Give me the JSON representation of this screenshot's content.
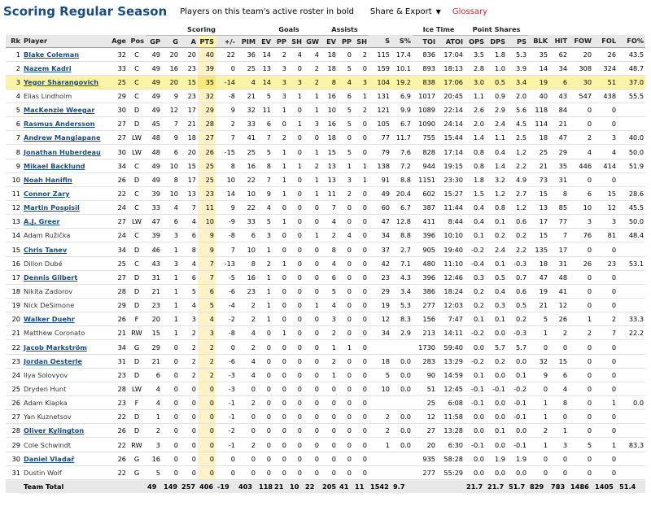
{
  "header": {
    "title": "Scoring Regular Season",
    "note": "Players on this team's active roster in bold",
    "share_label": "Share & Export",
    "glossary_label": "Glossary"
  },
  "table": {
    "over_headers": {
      "scoring": "Scoring",
      "goals": "Goals",
      "assists": "Assists",
      "ice_time": "Ice Time",
      "point_shares": "Point Shares"
    },
    "columns": [
      "Rk",
      "Player",
      "Age",
      "Pos",
      "GP",
      "G",
      "A",
      "PTS",
      "+/-",
      "PIM",
      "EV",
      "PP",
      "SH",
      "GW",
      "EV",
      "PP",
      "SH",
      "S",
      "S%",
      "TOI",
      "ATOI",
      "OPS",
      "DPS",
      "PS",
      "BLK",
      "HIT",
      "FOW",
      "FOL",
      "FO%"
    ],
    "rows": [
      {
        "bold": true,
        "hl": false,
        "cells": [
          "1",
          "Blake Coleman",
          "32",
          "C",
          "49",
          "20",
          "20",
          "40",
          "22",
          "36",
          "14",
          "2",
          "4",
          "4",
          "18",
          "0",
          "2",
          "115",
          "17.4",
          "836",
          "17:04",
          "3.5",
          "1.8",
          "5.3",
          "35",
          "62",
          "20",
          "26",
          "43.5"
        ]
      },
      {
        "bold": true,
        "hl": false,
        "cells": [
          "2",
          "Nazem Kadri",
          "33",
          "C",
          "49",
          "16",
          "23",
          "39",
          "0",
          "25",
          "13",
          "3",
          "0",
          "2",
          "18",
          "5",
          "0",
          "159",
          "10.1",
          "893",
          "18:13",
          "2.8",
          "1.0",
          "3.9",
          "14",
          "34",
          "308",
          "324",
          "48.7"
        ]
      },
      {
        "bold": true,
        "hl": true,
        "cells": [
          "3",
          "Yegor Sharangovich",
          "25",
          "C",
          "49",
          "20",
          "15",
          "35",
          "-14",
          "4",
          "14",
          "3",
          "3",
          "2",
          "8",
          "4",
          "3",
          "104",
          "19.2",
          "838",
          "17:06",
          "3.0",
          "0.5",
          "3.4",
          "19",
          "6",
          "30",
          "51",
          "37.0"
        ]
      },
      {
        "bold": false,
        "hl": false,
        "cells": [
          "4",
          "Elias Lindholm",
          "29",
          "C",
          "49",
          "9",
          "23",
          "32",
          "-8",
          "21",
          "5",
          "3",
          "1",
          "1",
          "16",
          "6",
          "1",
          "131",
          "6.9",
          "1017",
          "20:45",
          "1.1",
          "0.9",
          "2.0",
          "40",
          "43",
          "547",
          "438",
          "55.5"
        ]
      },
      {
        "bold": true,
        "hl": false,
        "cells": [
          "5",
          "MacKenzie Weegar",
          "30",
          "D",
          "49",
          "12",
          "17",
          "29",
          "9",
          "32",
          "11",
          "1",
          "0",
          "1",
          "10",
          "5",
          "2",
          "121",
          "9.9",
          "1089",
          "22:14",
          "2.6",
          "2.9",
          "5.6",
          "118",
          "84",
          "0",
          "0",
          ""
        ]
      },
      {
        "bold": true,
        "hl": false,
        "cells": [
          "6",
          "Rasmus Andersson",
          "27",
          "D",
          "45",
          "7",
          "21",
          "28",
          "2",
          "33",
          "6",
          "0",
          "1",
          "3",
          "16",
          "5",
          "0",
          "105",
          "6.7",
          "1090",
          "24:14",
          "2.0",
          "2.4",
          "4.5",
          "114",
          "21",
          "0",
          "0",
          ""
        ]
      },
      {
        "bold": true,
        "hl": false,
        "cells": [
          "7",
          "Andrew Mangiapane",
          "27",
          "LW",
          "48",
          "9",
          "18",
          "27",
          "7",
          "41",
          "7",
          "2",
          "0",
          "0",
          "18",
          "0",
          "0",
          "77",
          "11.7",
          "755",
          "15:44",
          "1.4",
          "1.1",
          "2.5",
          "18",
          "47",
          "2",
          "3",
          "40.0"
        ]
      },
      {
        "bold": true,
        "hl": false,
        "cells": [
          "8",
          "Jonathan Huberdeau",
          "30",
          "LW",
          "48",
          "6",
          "20",
          "26",
          "-15",
          "25",
          "5",
          "1",
          "0",
          "1",
          "15",
          "5",
          "0",
          "79",
          "7.6",
          "828",
          "17:14",
          "0.8",
          "0.4",
          "1.2",
          "25",
          "29",
          "4",
          "4",
          "50.0"
        ]
      },
      {
        "bold": true,
        "hl": false,
        "cells": [
          "9",
          "Mikael Backlund",
          "34",
          "C",
          "49",
          "10",
          "15",
          "25",
          "8",
          "16",
          "8",
          "1",
          "1",
          "2",
          "13",
          "1",
          "1",
          "138",
          "7.2",
          "944",
          "19:15",
          "0.8",
          "1.4",
          "2.2",
          "21",
          "35",
          "446",
          "414",
          "51.9"
        ]
      },
      {
        "bold": true,
        "hl": false,
        "cells": [
          "10",
          "Noah Hanifin",
          "26",
          "D",
          "49",
          "8",
          "17",
          "25",
          "10",
          "22",
          "7",
          "1",
          "0",
          "1",
          "13",
          "3",
          "1",
          "91",
          "8.8",
          "1151",
          "23:30",
          "1.8",
          "3.2",
          "4.9",
          "73",
          "31",
          "0",
          "0",
          ""
        ]
      },
      {
        "bold": true,
        "hl": false,
        "cells": [
          "11",
          "Connor Zary",
          "22",
          "C",
          "39",
          "10",
          "13",
          "23",
          "14",
          "10",
          "9",
          "1",
          "0",
          "1",
          "11",
          "2",
          "0",
          "49",
          "20.4",
          "602",
          "15:27",
          "1.5",
          "1.2",
          "2.7",
          "15",
          "8",
          "6",
          "15",
          "28.6"
        ]
      },
      {
        "bold": true,
        "hl": false,
        "cells": [
          "12",
          "Martin Pospisil",
          "24",
          "C",
          "33",
          "4",
          "7",
          "11",
          "9",
          "22",
          "4",
          "0",
          "0",
          "0",
          "7",
          "0",
          "0",
          "60",
          "6.7",
          "387",
          "11:44",
          "0.4",
          "0.8",
          "1.2",
          "13",
          "85",
          "10",
          "12",
          "45.5"
        ]
      },
      {
        "bold": true,
        "hl": false,
        "cells": [
          "13",
          "A.J. Greer",
          "27",
          "LW",
          "47",
          "6",
          "4",
          "10",
          "-9",
          "33",
          "5",
          "1",
          "0",
          "0",
          "4",
          "0",
          "0",
          "47",
          "12.8",
          "411",
          "8:44",
          "0.4",
          "0.1",
          "0.6",
          "17",
          "77",
          "3",
          "3",
          "50.0"
        ]
      },
      {
        "bold": false,
        "hl": false,
        "cells": [
          "14",
          "Adam Ružička",
          "24",
          "C",
          "39",
          "3",
          "6",
          "9",
          "-8",
          "6",
          "3",
          "0",
          "0",
          "1",
          "2",
          "4",
          "0",
          "34",
          "8.8",
          "396",
          "10:10",
          "0.1",
          "0.2",
          "0.2",
          "15",
          "7",
          "76",
          "81",
          "48.4"
        ]
      },
      {
        "bold": true,
        "hl": false,
        "cells": [
          "15",
          "Chris Tanev",
          "34",
          "D",
          "46",
          "1",
          "8",
          "9",
          "7",
          "10",
          "1",
          "0",
          "0",
          "0",
          "8",
          "0",
          "0",
          "37",
          "2.7",
          "905",
          "19:40",
          "-0.2",
          "2.4",
          "2.2",
          "135",
          "17",
          "0",
          "0",
          ""
        ]
      },
      {
        "bold": false,
        "hl": false,
        "cells": [
          "16",
          "Dillon Dubé",
          "25",
          "C",
          "43",
          "3",
          "4",
          "7",
          "-13",
          "8",
          "2",
          "1",
          "0",
          "0",
          "4",
          "0",
          "0",
          "42",
          "7.1",
          "480",
          "11:10",
          "-0.4",
          "0.1",
          "-0.3",
          "18",
          "31",
          "26",
          "23",
          "53.1"
        ]
      },
      {
        "bold": true,
        "hl": false,
        "cells": [
          "17",
          "Dennis Gilbert",
          "27",
          "D",
          "31",
          "1",
          "6",
          "7",
          "-5",
          "16",
          "1",
          "0",
          "0",
          "0",
          "6",
          "0",
          "0",
          "23",
          "4.3",
          "396",
          "12:46",
          "0.3",
          "0.5",
          "0.7",
          "47",
          "48",
          "0",
          "0",
          ""
        ]
      },
      {
        "bold": false,
        "hl": false,
        "cells": [
          "18",
          "Nikita Zadorov",
          "28",
          "D",
          "21",
          "1",
          "5",
          "6",
          "-6",
          "23",
          "1",
          "0",
          "0",
          "0",
          "5",
          "0",
          "0",
          "29",
          "3.4",
          "386",
          "18:24",
          "0.2",
          "0.4",
          "0.6",
          "19",
          "41",
          "0",
          "0",
          ""
        ]
      },
      {
        "bold": false,
        "hl": false,
        "cells": [
          "19",
          "Nick DeSimone",
          "29",
          "D",
          "23",
          "1",
          "4",
          "5",
          "-4",
          "2",
          "1",
          "0",
          "0",
          "1",
          "4",
          "0",
          "0",
          "19",
          "5.3",
          "277",
          "12:03",
          "0.2",
          "0.3",
          "0.5",
          "21",
          "12",
          "0",
          "0",
          ""
        ]
      },
      {
        "bold": true,
        "hl": false,
        "cells": [
          "20",
          "Walker Duehr",
          "26",
          "F",
          "20",
          "1",
          "3",
          "4",
          "-2",
          "2",
          "1",
          "0",
          "0",
          "0",
          "3",
          "0",
          "0",
          "12",
          "8.3",
          "156",
          "7:47",
          "0.1",
          "0.1",
          "0.2",
          "5",
          "26",
          "1",
          "2",
          "33.3"
        ]
      },
      {
        "bold": false,
        "hl": false,
        "cells": [
          "21",
          "Matthew Coronato",
          "21",
          "RW",
          "15",
          "1",
          "2",
          "3",
          "-8",
          "4",
          "0",
          "1",
          "0",
          "0",
          "2",
          "0",
          "0",
          "34",
          "2.9",
          "213",
          "14:11",
          "-0.2",
          "0.0",
          "-0.3",
          "1",
          "2",
          "2",
          "7",
          "22.2"
        ]
      },
      {
        "bold": true,
        "hl": false,
        "cells": [
          "22",
          "Jacob Markström",
          "34",
          "G",
          "29",
          "0",
          "2",
          "2",
          "0",
          "2",
          "0",
          "0",
          "0",
          "0",
          "1",
          "1",
          "0",
          "",
          "",
          "1730",
          "59:40",
          "0.0",
          "5.7",
          "5.7",
          "0",
          "0",
          "0",
          "0",
          ""
        ]
      },
      {
        "bold": true,
        "hl": false,
        "cells": [
          "23",
          "Jordan Oesterle",
          "31",
          "D",
          "21",
          "0",
          "2",
          "2",
          "-6",
          "4",
          "0",
          "0",
          "0",
          "0",
          "2",
          "0",
          "0",
          "18",
          "0.0",
          "283",
          "13:29",
          "-0.2",
          "0.2",
          "0.0",
          "32",
          "15",
          "0",
          "0",
          ""
        ]
      },
      {
        "bold": false,
        "hl": false,
        "cells": [
          "24",
          "Ilya Solovyov",
          "23",
          "D",
          "6",
          "0",
          "2",
          "2",
          "-3",
          "4",
          "0",
          "0",
          "0",
          "0",
          "1",
          "0",
          "0",
          "5",
          "0.0",
          "90",
          "14:59",
          "0.1",
          "0.0",
          "0.1",
          "9",
          "6",
          "0",
          "0",
          ""
        ]
      },
      {
        "bold": false,
        "hl": false,
        "cells": [
          "25",
          "Dryden Hunt",
          "28",
          "LW",
          "4",
          "0",
          "0",
          "0",
          "-3",
          "0",
          "0",
          "0",
          "0",
          "0",
          "0",
          "0",
          "0",
          "10",
          "0.0",
          "51",
          "12:45",
          "-0.1",
          "-0.1",
          "-0.2",
          "0",
          "4",
          "0",
          "0",
          ""
        ]
      },
      {
        "bold": false,
        "hl": false,
        "cells": [
          "26",
          "Adam Klapka",
          "23",
          "F",
          "4",
          "0",
          "0",
          "0",
          "-1",
          "2",
          "0",
          "0",
          "0",
          "0",
          "0",
          "0",
          "0",
          "",
          "",
          "25",
          "6:08",
          "-0.1",
          "0.0",
          "-0.1",
          "1",
          "8",
          "0",
          "1",
          "0.0"
        ]
      },
      {
        "bold": false,
        "hl": false,
        "cells": [
          "27",
          "Yan Kuznetsov",
          "22",
          "D",
          "1",
          "0",
          "0",
          "0",
          "-1",
          "0",
          "0",
          "0",
          "0",
          "0",
          "0",
          "0",
          "0",
          "2",
          "0.0",
          "12",
          "11:58",
          "0.0",
          "0.0",
          "-0.1",
          "1",
          "0",
          "0",
          "0",
          ""
        ]
      },
      {
        "bold": true,
        "hl": false,
        "cells": [
          "28",
          "Oliver Kylington",
          "26",
          "D",
          "2",
          "0",
          "0",
          "0",
          "-2",
          "0",
          "0",
          "0",
          "0",
          "0",
          "0",
          "0",
          "0",
          "2",
          "0.0",
          "27",
          "13:28",
          "0.0",
          "0.1",
          "0.0",
          "2",
          "1",
          "0",
          "0",
          ""
        ]
      },
      {
        "bold": false,
        "hl": false,
        "cells": [
          "29",
          "Cole Schwindt",
          "22",
          "RW",
          "3",
          "0",
          "0",
          "0",
          "-1",
          "2",
          "0",
          "0",
          "0",
          "0",
          "0",
          "0",
          "0",
          "1",
          "0.0",
          "20",
          "6:30",
          "-0.1",
          "0.0",
          "-0.1",
          "1",
          "3",
          "5",
          "1",
          "83.3"
        ]
      },
      {
        "bold": true,
        "hl": false,
        "cells": [
          "30",
          "Daniel Vladař",
          "26",
          "G",
          "16",
          "0",
          "0",
          "0",
          "0",
          "0",
          "0",
          "0",
          "0",
          "0",
          "0",
          "0",
          "0",
          "",
          "",
          "935",
          "58:28",
          "0.0",
          "1.9",
          "1.9",
          "0",
          "0",
          "0",
          "0",
          ""
        ]
      },
      {
        "bold": false,
        "hl": false,
        "cells": [
          "31",
          "Dustin Wolf",
          "22",
          "G",
          "5",
          "0",
          "0",
          "0",
          "0",
          "0",
          "0",
          "0",
          "0",
          "0",
          "0",
          "0",
          "0",
          "",
          "",
          "277",
          "55:29",
          "0.0",
          "0.0",
          "0.0",
          "0",
          "0",
          "0",
          "0",
          ""
        ]
      }
    ],
    "total": [
      "",
      "Team Total",
      "",
      "",
      "49",
      "149",
      "257",
      "406",
      "-19",
      "403",
      "118",
      "21",
      "10",
      "22",
      "205",
      "41",
      "11",
      "1542",
      "9.7",
      "",
      "",
      "21.7",
      "21.7",
      "51.7",
      "829",
      "783",
      "1486",
      "1405",
      "51.4"
    ]
  }
}
